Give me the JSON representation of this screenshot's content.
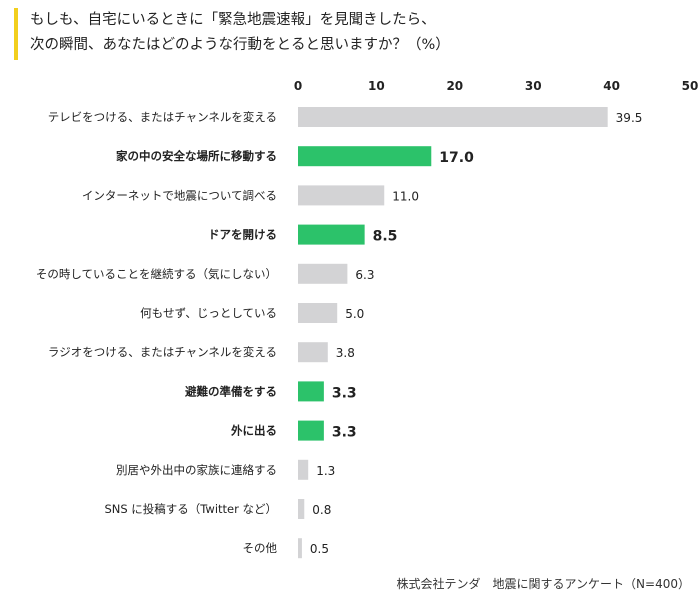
{
  "title_lines": [
    "もしも、自宅にいるときに「緊急地震速報」を見聞きしたら、",
    "次の瞬間、あなたはどのような行動をとると思いますか？（%）"
  ],
  "footer": "株式会社テンダ　地震に関するアンケート（N=400）",
  "colors": {
    "highlight": "#2cc26a",
    "normal": "#d3d3d5",
    "axis_text": "#222222",
    "title_accent": "#f2cf1d"
  },
  "chart_data": {
    "type": "bar",
    "orientation": "horizontal",
    "categories": [
      "テレビをつける、またはチャンネルを変える",
      "家の中の安全な場所に移動する",
      "インターネットで地震について調べる",
      "ドアを開ける",
      "その時していることを継続する（気にしない）",
      "何もせず、じっとしている",
      "ラジオをつける、またはチャンネルを変える",
      "避難の準備をする",
      "外に出る",
      "別居や外出中の家族に連絡する",
      "SNS に投稿する（Twitter など）",
      "その他"
    ],
    "values": [
      39.5,
      17.0,
      11.0,
      8.5,
      6.3,
      5.0,
      3.8,
      3.3,
      3.3,
      1.3,
      0.8,
      0.5
    ],
    "value_labels": [
      "39.5",
      "17.0",
      "11.0",
      "8.5",
      "6.3",
      "5.0",
      "3.8",
      "3.3",
      "3.3",
      "1.3",
      "0.8",
      "0.5"
    ],
    "highlighted": [
      false,
      true,
      false,
      true,
      false,
      false,
      false,
      true,
      true,
      false,
      false,
      false
    ],
    "xlim": [
      0,
      50
    ],
    "xticks": [
      0,
      10,
      20,
      30,
      40,
      50
    ],
    "xtick_labels": [
      "0",
      "10",
      "20",
      "30",
      "40",
      "50"
    ],
    "axis_position": "top",
    "grid": false,
    "legend": "none"
  }
}
